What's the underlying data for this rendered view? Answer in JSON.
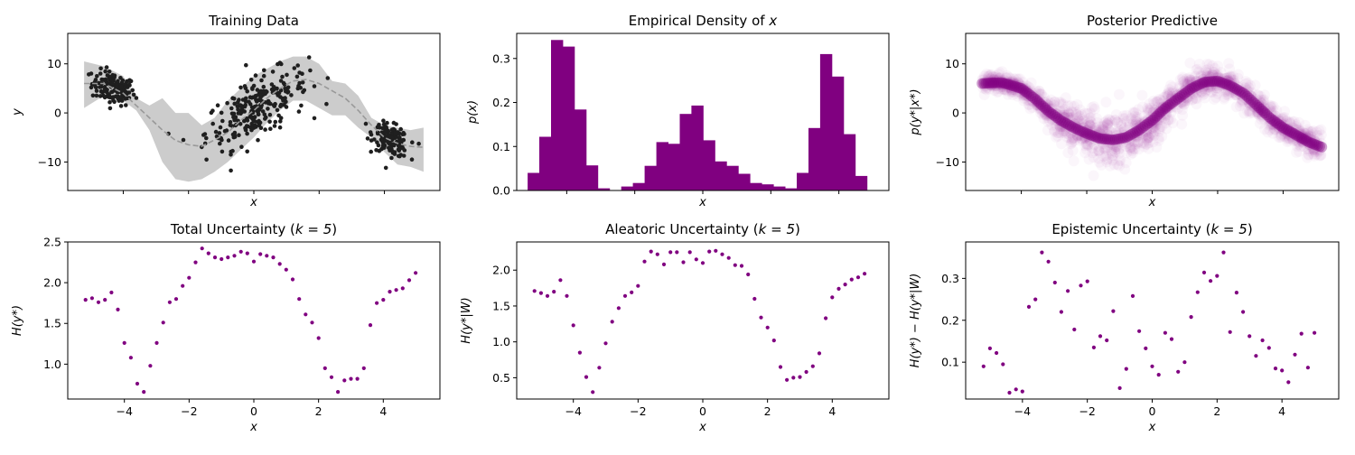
{
  "colors": {
    "purple": "#800080",
    "dark_points": "#1f1f1f",
    "band": "#cccccc",
    "dashed": "#999999",
    "axis": "#000000"
  },
  "chart_data": [
    {
      "id": "training",
      "type": "scatter",
      "title": "Training Data",
      "xlabel": "x",
      "ylabel": "y",
      "xlim": [
        -5.7,
        5.7
      ],
      "ylim": [
        -15.8,
        16.2
      ],
      "x_ticks_visible": false,
      "y_ticks": [
        -10,
        0,
        10
      ],
      "y_tick_labels": [
        "−10",
        "0",
        "10"
      ],
      "mean_x": [
        -5.2,
        -4.6,
        -4.0,
        -3.6,
        -3.2,
        -2.8,
        -2.4,
        -2.0,
        -1.6,
        -1.2,
        -0.8,
        -0.4,
        0.0,
        0.4,
        0.8,
        1.2,
        1.6,
        2.0,
        2.4,
        2.8,
        3.2,
        3.6,
        4.0,
        4.4,
        4.8,
        5.2
      ],
      "mean_y": [
        6.0,
        6.0,
        4.0,
        1.5,
        -1.0,
        -3.5,
        -5.6,
        -6.5,
        -6.8,
        -5.5,
        -4.0,
        -1.5,
        0.5,
        3.0,
        5.0,
        6.5,
        6.8,
        6.0,
        4.5,
        3.0,
        0.5,
        -2.5,
        -5.0,
        -6.2,
        -6.8,
        -7.0
      ],
      "band_lower": [
        1.0,
        3.5,
        2.5,
        0.5,
        -3.5,
        -10.0,
        -13.5,
        -14.0,
        -13.5,
        -12.0,
        -10.0,
        -7.5,
        -5.0,
        -2.0,
        0.5,
        2.5,
        2.5,
        1.0,
        -0.5,
        -0.5,
        -3.0,
        -5.0,
        -8.0,
        -10.5,
        -11.0,
        -12.0
      ],
      "band_upper": [
        10.5,
        9.5,
        7.5,
        3.0,
        1.5,
        3.0,
        0.0,
        0.0,
        -2.5,
        -1.0,
        2.5,
        5.0,
        7.5,
        9.0,
        10.5,
        11.5,
        11.5,
        10.0,
        6.5,
        6.0,
        3.5,
        -1.0,
        -2.5,
        -3.0,
        -3.5,
        -3.0
      ],
      "clusters": [
        {
          "x_center": -4.3,
          "x_spread": 0.55,
          "trend_slope": -1.5,
          "trend_at_center": 5.0,
          "y_noise": 1.6,
          "count": 140
        },
        {
          "x_center": 0.1,
          "x_spread": 1.3,
          "trend_slope": 3.2,
          "trend_at_center": 1.0,
          "y_noise": 3.0,
          "count": 260
        },
        {
          "x_center": 4.2,
          "x_spread": 0.45,
          "trend_slope": -2.3,
          "trend_at_center": -5.5,
          "y_noise": 1.5,
          "count": 150
        }
      ]
    },
    {
      "id": "density",
      "type": "bar",
      "title": "Empirical Density of ",
      "title_var": "x",
      "xlabel": "x",
      "ylabel": "p(x)",
      "xlim": [
        -5.47,
        5.47
      ],
      "ylim": [
        0,
        0.357
      ],
      "x_ticks_visible": false,
      "y_ticks": [
        0.0,
        0.1,
        0.2,
        0.3
      ],
      "y_tick_labels": [
        "0.0",
        "0.1",
        "0.2",
        "0.3"
      ],
      "bin_start": -5.15,
      "bin_width": 0.344,
      "values": [
        0.04,
        0.122,
        0.342,
        0.327,
        0.184,
        0.057,
        0.005,
        0.0,
        0.009,
        0.017,
        0.056,
        0.11,
        0.106,
        0.174,
        0.193,
        0.114,
        0.066,
        0.056,
        0.038,
        0.017,
        0.014,
        0.009,
        0.005,
        0.04,
        0.142,
        0.31,
        0.259,
        0.128,
        0.033
      ]
    },
    {
      "id": "posterior",
      "type": "scatter",
      "title": "Posterior Predictive",
      "xlabel": "x",
      "ylabel": "p(y*|x*)",
      "xlim": [
        -5.7,
        5.7
      ],
      "ylim": [
        -15.8,
        16.2
      ],
      "x_ticks_visible": false,
      "y_ticks": [
        -10,
        0,
        10
      ],
      "y_tick_labels": [
        "−10",
        "0",
        "10"
      ],
      "mean_x": [
        -5.2,
        -4.6,
        -4.0,
        -3.6,
        -3.2,
        -2.8,
        -2.4,
        -2.0,
        -1.6,
        -1.2,
        -0.8,
        -0.4,
        0.0,
        0.4,
        0.8,
        1.2,
        1.6,
        2.0,
        2.4,
        2.8,
        3.2,
        3.6,
        4.0,
        4.4,
        4.8,
        5.2
      ],
      "mean_y": [
        6.0,
        6.2,
        5.0,
        3.0,
        0.5,
        -1.5,
        -3.0,
        -4.2,
        -5.2,
        -5.5,
        -5.0,
        -3.5,
        -1.5,
        1.0,
        3.0,
        5.0,
        6.3,
        6.5,
        5.5,
        4.0,
        1.5,
        -1.0,
        -3.0,
        -4.5,
        -6.0,
        -7.0
      ],
      "mean_spread": [
        1.5,
        1.5,
        1.8,
        2.0,
        2.5,
        3.0,
        3.5,
        4.0,
        4.5,
        4.5,
        4.5,
        4.0,
        4.0,
        3.5,
        3.0,
        2.5,
        2.5,
        2.5,
        2.5,
        2.5,
        2.5,
        2.5,
        2.0,
        2.0,
        2.0,
        2.5
      ],
      "sample_count": 1600
    },
    {
      "id": "total",
      "type": "scatter",
      "title": "Total Uncertainty (",
      "title_k": "k = 5",
      "xlabel": "x",
      "ylabel": "H(y*)",
      "xlim": [
        -5.75,
        5.75
      ],
      "ylim": [
        0.572,
        2.5
      ],
      "y_ticks": [
        1.0,
        1.5,
        2.0,
        2.5
      ],
      "y_tick_labels": [
        "1.0",
        "1.5",
        "2.0",
        "2.5"
      ],
      "x_ticks": [
        -4,
        -2,
        0,
        2,
        4
      ],
      "x_tick_labels": [
        "−4",
        "−2",
        "0",
        "2",
        "4"
      ],
      "x": [
        -5.2,
        -5.0,
        -4.8,
        -4.6,
        -4.4,
        -4.2,
        -4.0,
        -3.8,
        -3.6,
        -3.4,
        -3.2,
        -3.0,
        -2.8,
        -2.6,
        -2.4,
        -2.2,
        -2.0,
        -1.8,
        -1.6,
        -1.4,
        -1.2,
        -1.0,
        -0.8,
        -0.6,
        -0.4,
        -0.2,
        0.0,
        0.2,
        0.4,
        0.6,
        0.8,
        1.0,
        1.2,
        1.4,
        1.6,
        1.8,
        2.0,
        2.2,
        2.4,
        2.6,
        2.8,
        3.0,
        3.2,
        3.4,
        3.6,
        3.8,
        4.0,
        4.2,
        4.4,
        4.6,
        4.8,
        5.0
      ],
      "values": [
        1.79,
        1.81,
        1.76,
        1.79,
        1.88,
        1.67,
        1.26,
        1.08,
        0.76,
        0.66,
        0.98,
        1.26,
        1.51,
        1.76,
        1.8,
        1.96,
        2.06,
        2.25,
        2.42,
        2.36,
        2.31,
        2.29,
        2.31,
        2.33,
        2.38,
        2.36,
        2.26,
        2.35,
        2.33,
        2.31,
        2.23,
        2.16,
        2.04,
        1.8,
        1.61,
        1.51,
        1.32,
        0.95,
        0.84,
        0.66,
        0.8,
        0.82,
        0.82,
        0.95,
        1.48,
        1.75,
        1.79,
        1.89,
        1.91,
        1.93,
        2.03,
        2.12
      ]
    },
    {
      "id": "aleatoric",
      "type": "scatter",
      "title": "Aleatoric Uncertainty (",
      "title_k": "k = 5",
      "xlabel": "x",
      "ylabel": "H(y*|W)",
      "xlim": [
        -5.75,
        5.75
      ],
      "ylim": [
        0.203,
        2.393
      ],
      "y_ticks": [
        0.5,
        1.0,
        1.5,
        2.0
      ],
      "y_tick_labels": [
        "0.5",
        "1.0",
        "1.5",
        "2.0"
      ],
      "x_ticks": [
        -4,
        -2,
        0,
        2,
        4
      ],
      "x_tick_labels": [
        "−4",
        "−2",
        "0",
        "2",
        "4"
      ],
      "x": [
        -5.2,
        -5.0,
        -4.8,
        -4.6,
        -4.4,
        -4.2,
        -4.0,
        -3.8,
        -3.6,
        -3.4,
        -3.2,
        -3.0,
        -2.8,
        -2.6,
        -2.4,
        -2.2,
        -2.0,
        -1.8,
        -1.6,
        -1.4,
        -1.2,
        -1.0,
        -0.8,
        -0.6,
        -0.4,
        -0.2,
        0.0,
        0.2,
        0.4,
        0.6,
        0.8,
        1.0,
        1.2,
        1.4,
        1.6,
        1.8,
        2.0,
        2.2,
        2.4,
        2.6,
        2.8,
        3.0,
        3.2,
        3.4,
        3.6,
        3.8,
        4.0,
        4.2,
        4.4,
        4.6,
        4.8,
        5.0
      ],
      "values": [
        1.71,
        1.68,
        1.64,
        1.7,
        1.86,
        1.64,
        1.23,
        0.85,
        0.51,
        0.3,
        0.64,
        0.98,
        1.28,
        1.47,
        1.64,
        1.69,
        1.78,
        2.12,
        2.26,
        2.22,
        2.08,
        2.25,
        2.25,
        2.11,
        2.25,
        2.15,
        2.1,
        2.26,
        2.27,
        2.22,
        2.17,
        2.07,
        2.06,
        1.94,
        1.6,
        1.34,
        1.2,
        1.02,
        0.65,
        0.47,
        0.5,
        0.51,
        0.58,
        0.66,
        0.84,
        1.33,
        1.62,
        1.74,
        1.8,
        1.87,
        1.9,
        1.95
      ]
    },
    {
      "id": "epistemic",
      "type": "scatter",
      "title": "Epistemic Uncertainty (",
      "title_k": "k = 5",
      "xlabel": "x",
      "ylabel": "H(y*) − H(y*|W)",
      "xlim": [
        -5.75,
        5.75
      ],
      "ylim": [
        0.012,
        0.387
      ],
      "y_ticks": [
        0.1,
        0.2,
        0.3
      ],
      "y_tick_labels": [
        "0.1",
        "0.2",
        "0.3"
      ],
      "x_ticks": [
        -4,
        -2,
        0,
        2,
        4
      ],
      "x_tick_labels": [
        "−4",
        "−2",
        "0",
        "2",
        "4"
      ],
      "x": [
        -5.2,
        -5.0,
        -4.8,
        -4.6,
        -4.4,
        -4.2,
        -4.0,
        -3.8,
        -3.6,
        -3.4,
        -3.2,
        -3.0,
        -2.8,
        -2.6,
        -2.4,
        -2.2,
        -2.0,
        -1.8,
        -1.6,
        -1.4,
        -1.2,
        -1.0,
        -0.8,
        -0.6,
        -0.4,
        -0.2,
        0.0,
        0.2,
        0.4,
        0.6,
        0.8,
        1.0,
        1.2,
        1.4,
        1.6,
        1.8,
        2.0,
        2.2,
        2.4,
        2.6,
        2.8,
        3.0,
        3.2,
        3.4,
        3.6,
        3.8,
        4.0,
        4.2,
        4.4,
        4.6,
        4.8,
        5.0
      ],
      "values": [
        0.09,
        0.133,
        0.122,
        0.095,
        0.027,
        0.035,
        0.03,
        0.232,
        0.25,
        0.362,
        0.34,
        0.29,
        0.22,
        0.27,
        0.178,
        0.283,
        0.293,
        0.135,
        0.162,
        0.152,
        0.222,
        0.038,
        0.084,
        0.258,
        0.174,
        0.133,
        0.09,
        0.07,
        0.17,
        0.155,
        0.077,
        0.1,
        0.208,
        0.267,
        0.314,
        0.294,
        0.306,
        0.362,
        0.172,
        0.266,
        0.22,
        0.162,
        0.115,
        0.152,
        0.134,
        0.085,
        0.08,
        0.052,
        0.118,
        0.168,
        0.087,
        0.17
      ]
    }
  ]
}
